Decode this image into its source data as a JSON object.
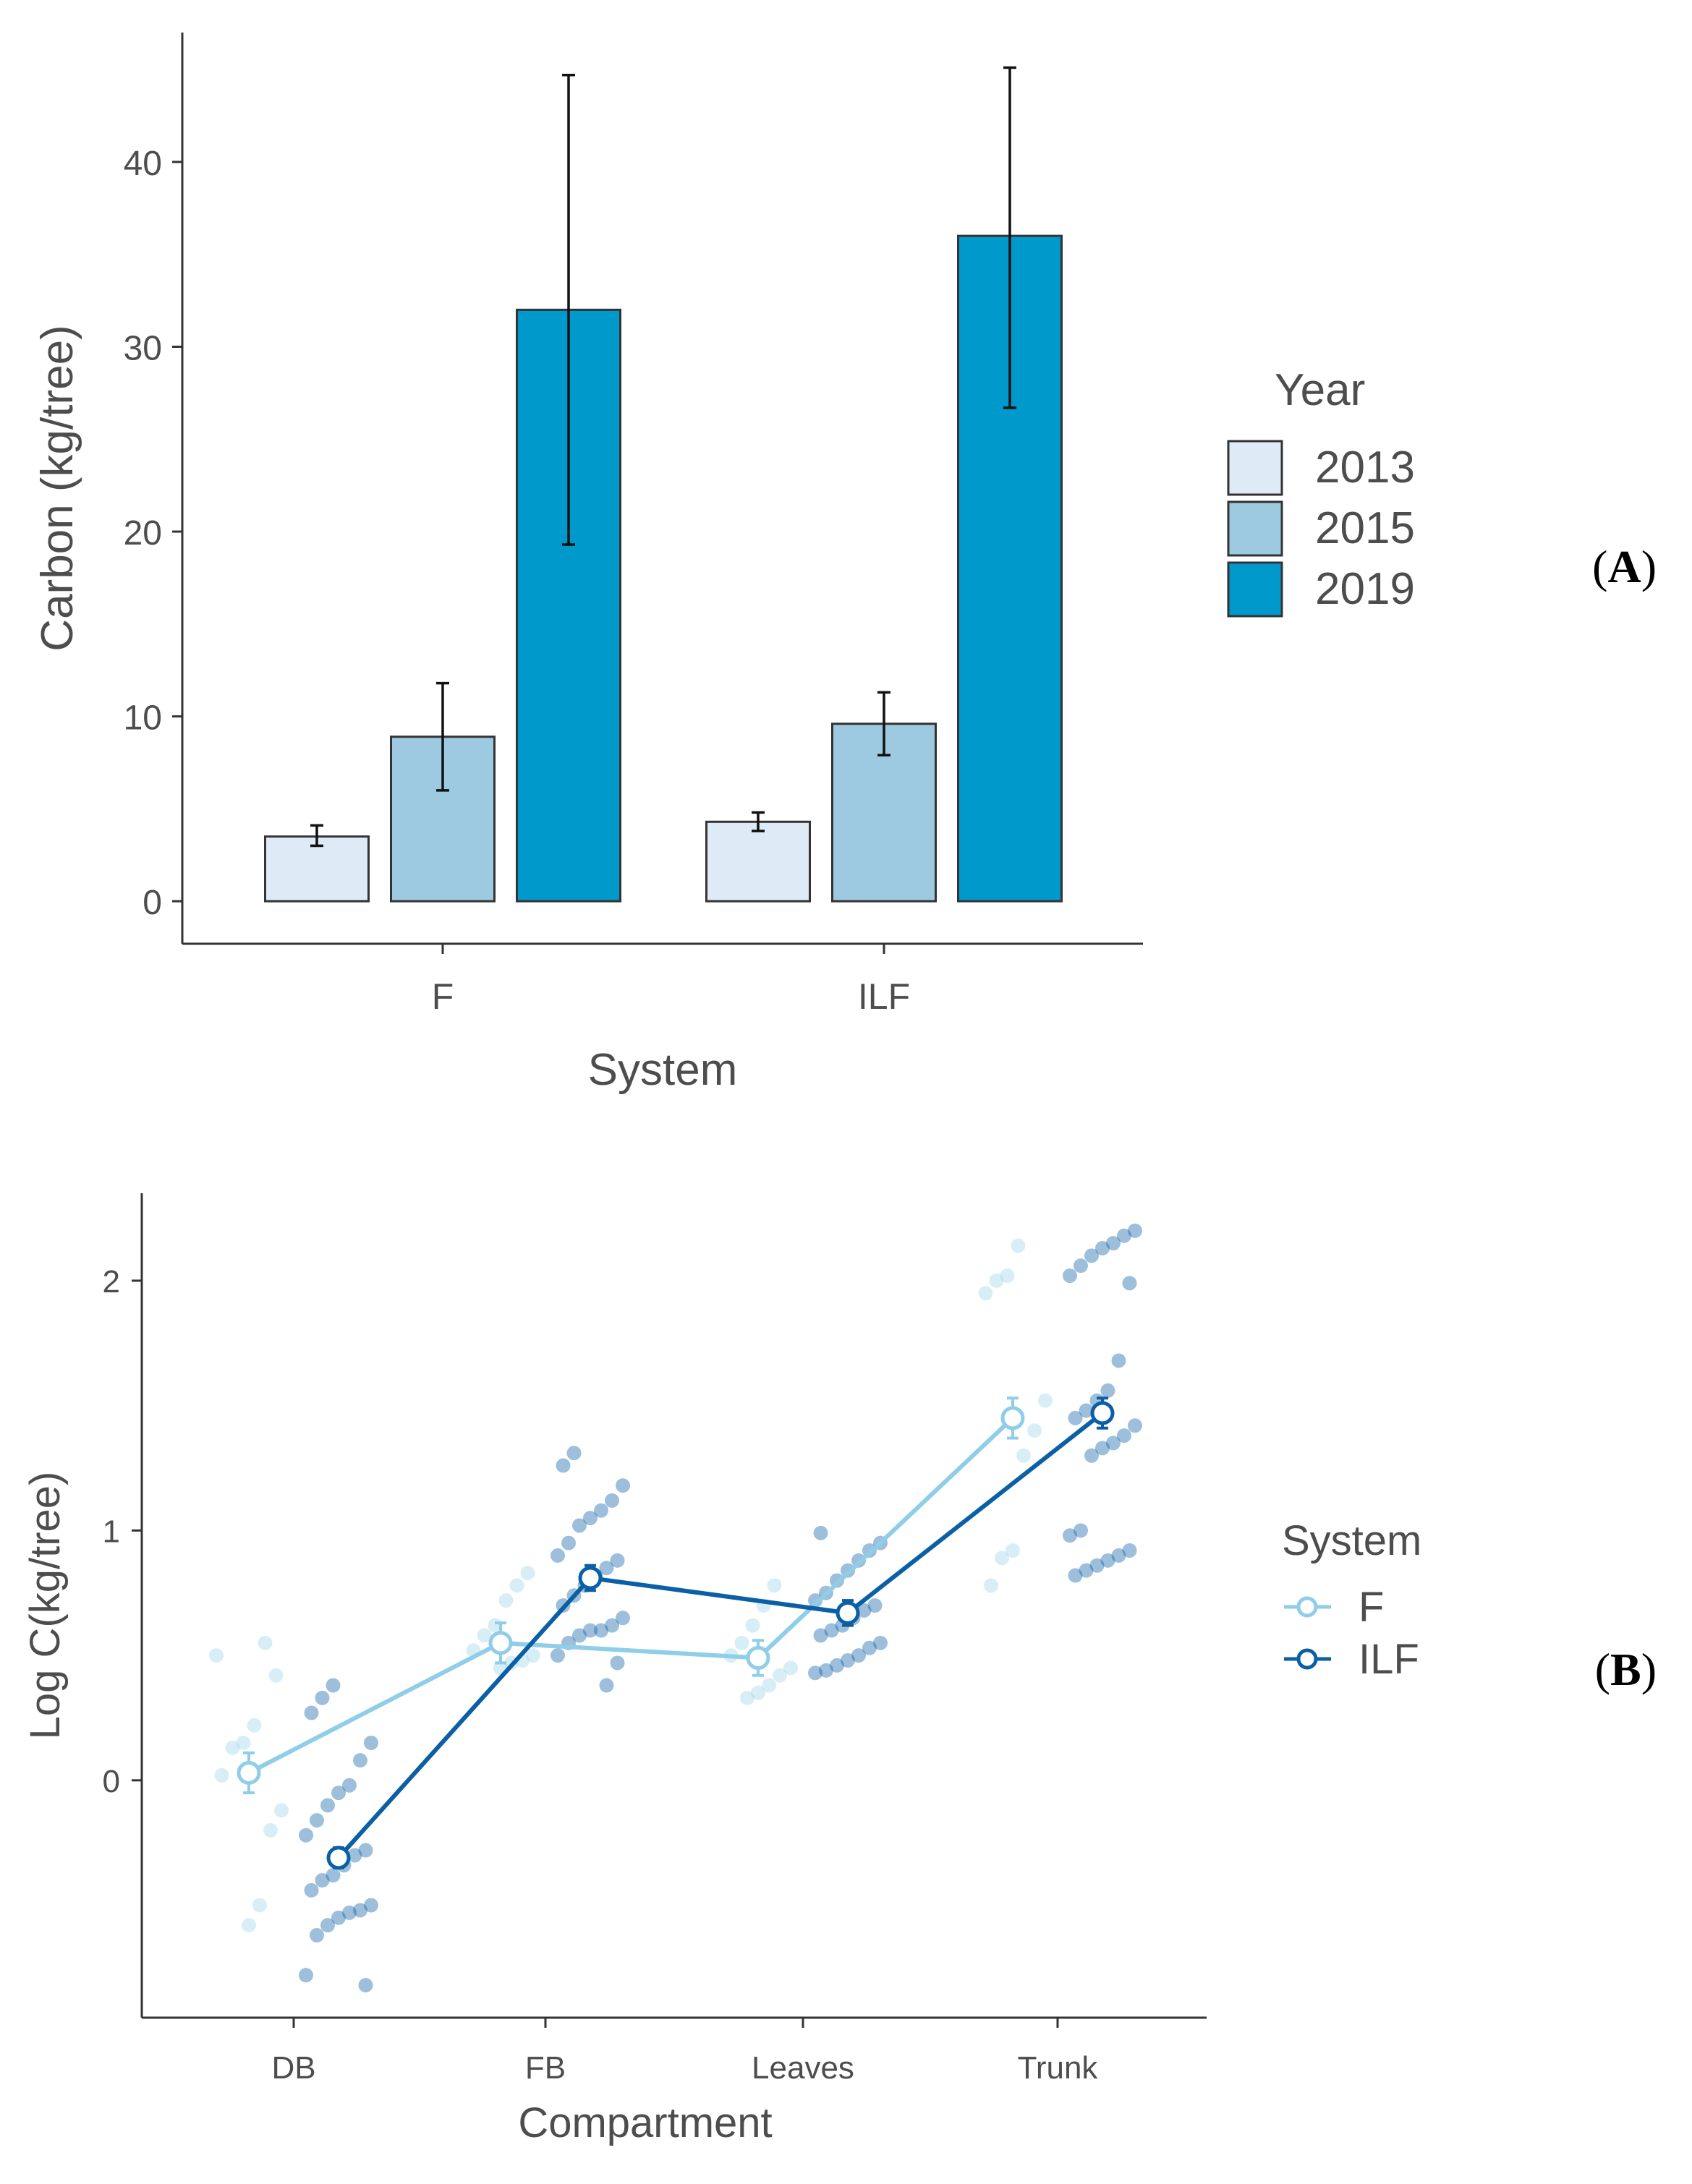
{
  "chart_data": [
    {
      "type": "bar",
      "panel_label": "A",
      "xlabel": "System",
      "ylabel": "Carbon (kg/tree)",
      "categories": [
        "F",
        "ILF"
      ],
      "ylim": [
        -2.3,
        47
      ],
      "yticks": [
        0,
        10,
        20,
        30,
        40
      ],
      "legend": {
        "title": "Year",
        "position": "right"
      },
      "series": [
        {
          "name": "2013",
          "color": "#deebf7",
          "values": [
            3.5,
            4.3
          ],
          "error_low": [
            3.0,
            3.8
          ],
          "error_high": [
            4.1,
            4.8
          ]
        },
        {
          "name": "2015",
          "color": "#9ecae1",
          "values": [
            8.9,
            9.6
          ],
          "error_low": [
            6.0,
            7.9
          ],
          "error_high": [
            11.8,
            11.3
          ]
        },
        {
          "name": "2019",
          "color": "#0099cc",
          "values": [
            32.0,
            36.0
          ],
          "error_low": [
            19.3,
            26.7
          ],
          "error_high": [
            44.7,
            45.1
          ]
        }
      ],
      "grid": false
    },
    {
      "type": "line",
      "panel_label": "B",
      "xlabel": "Compartment",
      "ylabel": "Log C(kg/tree)",
      "categories": [
        "DB",
        "FB",
        "Leaves",
        "Trunk"
      ],
      "ylim": [
        -0.95,
        2.35
      ],
      "yticks": [
        0,
        1,
        2
      ],
      "legend": {
        "title": "System",
        "position": "right"
      },
      "series": [
        {
          "name": "F",
          "color": "#8fcde8",
          "means": [
            0.03,
            0.55,
            0.49,
            1.45
          ],
          "error_low": [
            -0.05,
            0.47,
            0.42,
            1.37
          ],
          "error_high": [
            0.11,
            0.63,
            0.56,
            1.53
          ],
          "points": [
            [
              0.5,
              0.42,
              0.55,
              0.22,
              0.15,
              0.13,
              0.02,
              -0.12,
              -0.2,
              -0.5,
              -0.58
            ],
            [
              0.83,
              0.78,
              0.72,
              0.62,
              0.58,
              0.52,
              0.5,
              0.48,
              0.47,
              0.45
            ],
            [
              0.78,
              0.7,
              0.62,
              0.55,
              0.5,
              0.45,
              0.42,
              0.38,
              0.35,
              0.33
            ],
            [
              2.14,
              2.02,
              2.0,
              1.95,
              1.52,
              1.4,
              1.3,
              0.92,
              0.89,
              0.78
            ]
          ]
        },
        {
          "name": "ILF",
          "color": "#0b5fa5",
          "means": [
            -0.31,
            0.81,
            0.67,
            1.47
          ],
          "error_low": [
            -0.35,
            0.76,
            0.62,
            1.41
          ],
          "error_high": [
            -0.27,
            0.86,
            0.72,
            1.53
          ],
          "points": [
            [
              0.38,
              0.33,
              0.27,
              0.15,
              0.08,
              -0.02,
              -0.05,
              -0.1,
              -0.16,
              -0.22,
              -0.28,
              -0.3,
              -0.34,
              -0.38,
              -0.4,
              -0.44,
              -0.5,
              -0.52,
              -0.53,
              -0.55,
              -0.58,
              -0.62,
              -0.78,
              -0.82
            ],
            [
              1.31,
              1.26,
              1.18,
              1.12,
              1.08,
              1.05,
              1.02,
              0.95,
              0.9,
              0.88,
              0.85,
              0.82,
              0.78,
              0.74,
              0.7,
              0.65,
              0.62,
              0.6,
              0.6,
              0.58,
              0.55,
              0.5,
              0.47,
              0.38
            ],
            [
              0.99,
              0.95,
              0.92,
              0.88,
              0.84,
              0.8,
              0.75,
              0.72,
              0.7,
              0.68,
              0.65,
              0.62,
              0.6,
              0.58,
              0.55,
              0.53,
              0.5,
              0.48,
              0.46,
              0.44,
              0.43
            ],
            [
              2.2,
              2.18,
              2.15,
              2.13,
              2.1,
              2.06,
              2.02,
              1.99,
              1.68,
              1.56,
              1.52,
              1.48,
              1.45,
              1.42,
              1.38,
              1.35,
              1.33,
              1.3,
              1.0,
              0.98,
              0.92,
              0.9,
              0.88,
              0.86,
              0.84,
              0.82
            ]
          ]
        }
      ],
      "grid": false
    }
  ]
}
